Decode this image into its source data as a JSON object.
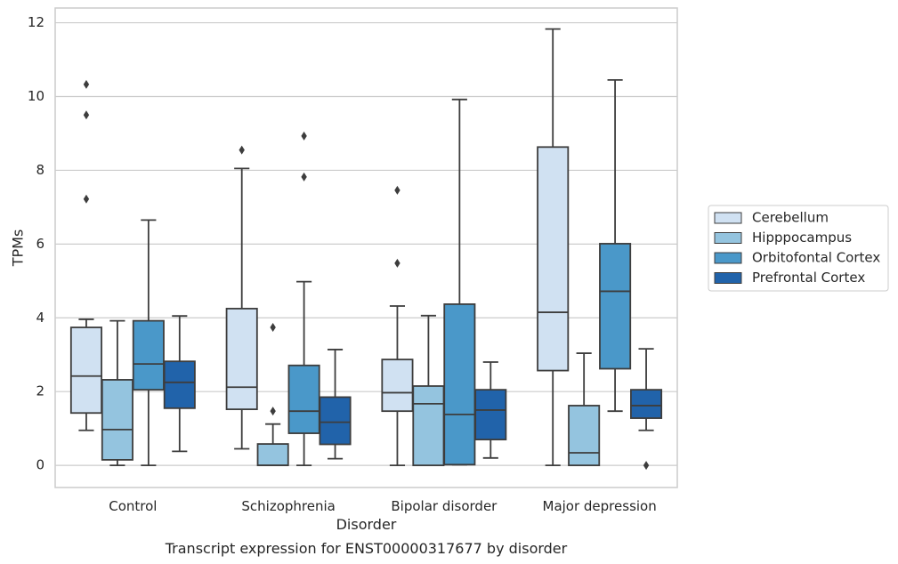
{
  "chart_data": {
    "type": "box",
    "xlabel": "Disorder",
    "ylabel": "TPMs",
    "caption": "Transcript expression for ENST00000317677 by disorder",
    "ylim": [
      -0.6,
      12.4
    ],
    "yticks": [
      0,
      2,
      4,
      6,
      8,
      10,
      12
    ],
    "grid": "horizontal",
    "legend_position": "right",
    "categories": [
      "Control",
      "Schizophrenia",
      "Bipolar disorder",
      "Major depression"
    ],
    "series": [
      {
        "name": "Cerebellum",
        "color": "#d0e1f2",
        "boxes": [
          {
            "whislo": 0.95,
            "q1": 1.42,
            "med": 2.42,
            "q3": 3.74,
            "whishi": 3.96,
            "fliers": [
              7.22,
              9.5,
              10.33
            ]
          },
          {
            "whislo": 0.45,
            "q1": 1.52,
            "med": 2.12,
            "q3": 4.25,
            "whishi": 8.05,
            "fliers": [
              8.55
            ]
          },
          {
            "whislo": 0.0,
            "q1": 1.47,
            "med": 1.97,
            "q3": 2.87,
            "whishi": 4.32,
            "fliers": [
              5.48,
              7.46
            ]
          },
          {
            "whislo": 0.0,
            "q1": 2.57,
            "med": 4.15,
            "q3": 8.63,
            "whishi": 11.83,
            "fliers": []
          }
        ]
      },
      {
        "name": "Hipppocampus",
        "color": "#94c4df",
        "boxes": [
          {
            "whislo": 0.0,
            "q1": 0.15,
            "med": 0.97,
            "q3": 2.32,
            "whishi": 3.92,
            "fliers": []
          },
          {
            "whislo": 0.0,
            "q1": 0.0,
            "med": 0.0,
            "q3": 0.58,
            "whishi": 1.12,
            "fliers": [
              1.47,
              3.74
            ]
          },
          {
            "whislo": 0.0,
            "q1": 0.0,
            "med": 1.67,
            "q3": 2.15,
            "whishi": 4.06,
            "fliers": []
          },
          {
            "whislo": 0.0,
            "q1": 0.0,
            "med": 0.34,
            "q3": 1.62,
            "whishi": 3.04,
            "fliers": []
          }
        ]
      },
      {
        "name": "Orbitofontal Cortex",
        "color": "#4a98c9",
        "boxes": [
          {
            "whislo": 0.0,
            "q1": 2.05,
            "med": 2.75,
            "q3": 3.92,
            "whishi": 6.65,
            "fliers": []
          },
          {
            "whislo": 0.0,
            "q1": 0.87,
            "med": 1.47,
            "q3": 2.71,
            "whishi": 4.98,
            "fliers": [
              7.82,
              8.93
            ]
          },
          {
            "whislo": 0.02,
            "q1": 0.02,
            "med": 1.38,
            "q3": 4.37,
            "whishi": 9.92,
            "fliers": []
          },
          {
            "whislo": 1.47,
            "q1": 2.62,
            "med": 4.72,
            "q3": 6.01,
            "whishi": 10.45,
            "fliers": []
          }
        ]
      },
      {
        "name": "Prefrontal Cortex",
        "color": "#2163aa",
        "boxes": [
          {
            "whislo": 0.38,
            "q1": 1.55,
            "med": 2.25,
            "q3": 2.82,
            "whishi": 4.05,
            "fliers": []
          },
          {
            "whislo": 0.18,
            "q1": 0.57,
            "med": 1.17,
            "q3": 1.85,
            "whishi": 3.14,
            "fliers": []
          },
          {
            "whislo": 0.2,
            "q1": 0.7,
            "med": 1.5,
            "q3": 2.05,
            "whishi": 2.8,
            "fliers": []
          },
          {
            "whislo": 0.95,
            "q1": 1.28,
            "med": 1.62,
            "q3": 2.05,
            "whishi": 3.16,
            "fliers": [
              0.0
            ]
          }
        ]
      }
    ]
  }
}
